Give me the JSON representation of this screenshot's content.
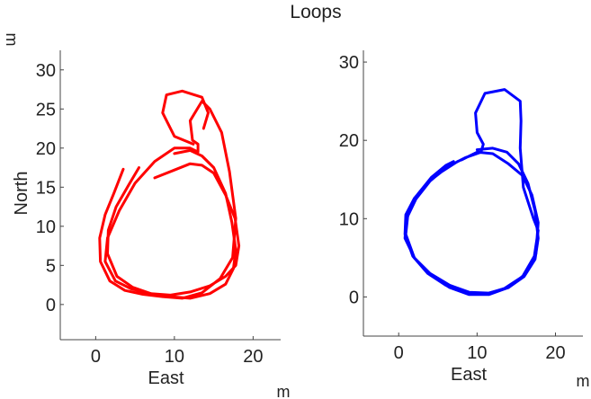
{
  "chart_data": {
    "title": "Loops",
    "unit": "m",
    "charts": [
      {
        "type": "line",
        "xlabel": "East",
        "ylabel": "North",
        "xlim": [
          -4.5,
          23.5
        ],
        "ylim": [
          -4.5,
          32.5
        ],
        "xticks": [
          0,
          10,
          20
        ],
        "yticks": [
          0,
          5,
          10,
          15,
          20,
          25,
          30
        ],
        "color": "#ff0000",
        "series": [
          {
            "x": [
              7.5,
              10.0,
              12.0,
              13.5,
              15.0,
              16.5,
              17.7,
              18.2,
              17.8,
              16.5,
              14.5,
              12.0,
              9.5,
              7.0,
              4.5,
              2.5,
              1.2,
              1.5,
              3.0,
              5.0,
              7.5,
              10.0,
              12.0,
              13.0,
              13.0,
              12.3,
              12.0,
              13.5,
              14.5,
              16.0,
              17.0,
              17.8,
              17.4,
              15.8,
              13.5,
              11.0,
              8.5,
              6.0,
              3.7,
              1.8,
              0.6,
              0.5,
              1.2,
              2.3,
              3.5
            ],
            "y": [
              16.2,
              17.2,
              18.0,
              17.8,
              16.8,
              14.0,
              11.0,
              7.5,
              5.0,
              3.6,
              2.4,
              1.6,
              1.2,
              1.4,
              2.0,
              3.0,
              5.5,
              8.5,
              12.0,
              15.5,
              18.3,
              20.0,
              20.0,
              19.5,
              20.5,
              21.0,
              23.5,
              26.0,
              25.0,
              22.0,
              17.0,
              11.0,
              6.0,
              3.3,
              1.5,
              0.8,
              1.0,
              1.3,
              1.8,
              3.0,
              5.5,
              8.5,
              11.5,
              14.2,
              17.3
            ]
          },
          {
            "x": [
              10.0,
              12.0,
              13.5,
              15.0,
              16.5,
              17.3,
              17.8,
              17.5,
              16.5,
              14.5,
              12.0,
              9.5,
              7.0,
              4.7,
              2.7,
              1.5,
              1.6,
              2.6,
              4.2,
              5.5
            ],
            "y": [
              19.3,
              19.7,
              19.0,
              17.5,
              14.2,
              10.5,
              7.0,
              4.6,
              2.6,
              1.4,
              0.8,
              1.0,
              1.4,
              2.2,
              3.6,
              6.5,
              9.5,
              12.5,
              15.3,
              17.5
            ]
          },
          {
            "x": [
              12.4,
              10.0,
              8.5,
              9.0,
              11.0,
              13.5,
              14.3,
              13.7
            ],
            "y": [
              20.5,
              21.5,
              24.5,
              26.8,
              27.3,
              26.5,
              24.5,
              22.5
            ]
          }
        ]
      },
      {
        "type": "line",
        "xlabel": "East",
        "ylabel": "",
        "xlim": [
          -4.5,
          23.5
        ],
        "ylim": [
          -5.0,
          31.5
        ],
        "xticks": [
          0,
          10,
          20
        ],
        "yticks": [
          0,
          10,
          20,
          30
        ],
        "color": "#0000ff",
        "series": [
          {
            "x": [
              10.0,
              12.0,
              13.8,
              15.3,
              16.5,
              17.4,
              17.8,
              17.4,
              16.0,
              14.0,
              11.5,
              9.0,
              6.5,
              4.0,
              2.0,
              0.9,
              1.2,
              2.5,
              4.2,
              6.0,
              7.0
            ],
            "y": [
              18.8,
              19.0,
              18.5,
              17.0,
              14.5,
              11.0,
              7.5,
              4.8,
              2.6,
              1.2,
              0.5,
              0.6,
              1.5,
              3.0,
              5.0,
              8.0,
              10.8,
              13.2,
              15.3,
              16.8,
              17.3
            ]
          },
          {
            "x": [
              8.0,
              10.0,
              12.0,
              14.0,
              15.8,
              17.0,
              17.8,
              17.5,
              16.0,
              14.0,
              11.5,
              9.0,
              6.5,
              4.0,
              2.0,
              0.8,
              1.0,
              2.2,
              4.0,
              6.0,
              8.5,
              10.5,
              10.8,
              10.0,
              9.8,
              11.0,
              13.5,
              15.5,
              15.6,
              15.5,
              15.9,
              17.2,
              17.8,
              17.3,
              15.8,
              13.5,
              11.0,
              8.5,
              6.0,
              3.7,
              1.8,
              0.8,
              0.9,
              2.0,
              3.7,
              5.5,
              7.5
            ],
            "y": [
              17.5,
              18.5,
              18.3,
              17.0,
              15.5,
              13.0,
              9.5,
              5.5,
              2.8,
              1.2,
              0.3,
              0.3,
              1.2,
              2.8,
              5.0,
              7.5,
              10.0,
              12.5,
              14.8,
              16.5,
              17.8,
              18.5,
              19.5,
              21.0,
              23.5,
              26.0,
              26.5,
              25.0,
              22.5,
              19.0,
              14.0,
              10.0,
              8.5,
              5.2,
              2.6,
              1.1,
              0.3,
              0.5,
              1.5,
              3.0,
              5.2,
              8.0,
              10.5,
              12.6,
              14.6,
              16.0,
              17.3
            ]
          }
        ]
      }
    ]
  }
}
